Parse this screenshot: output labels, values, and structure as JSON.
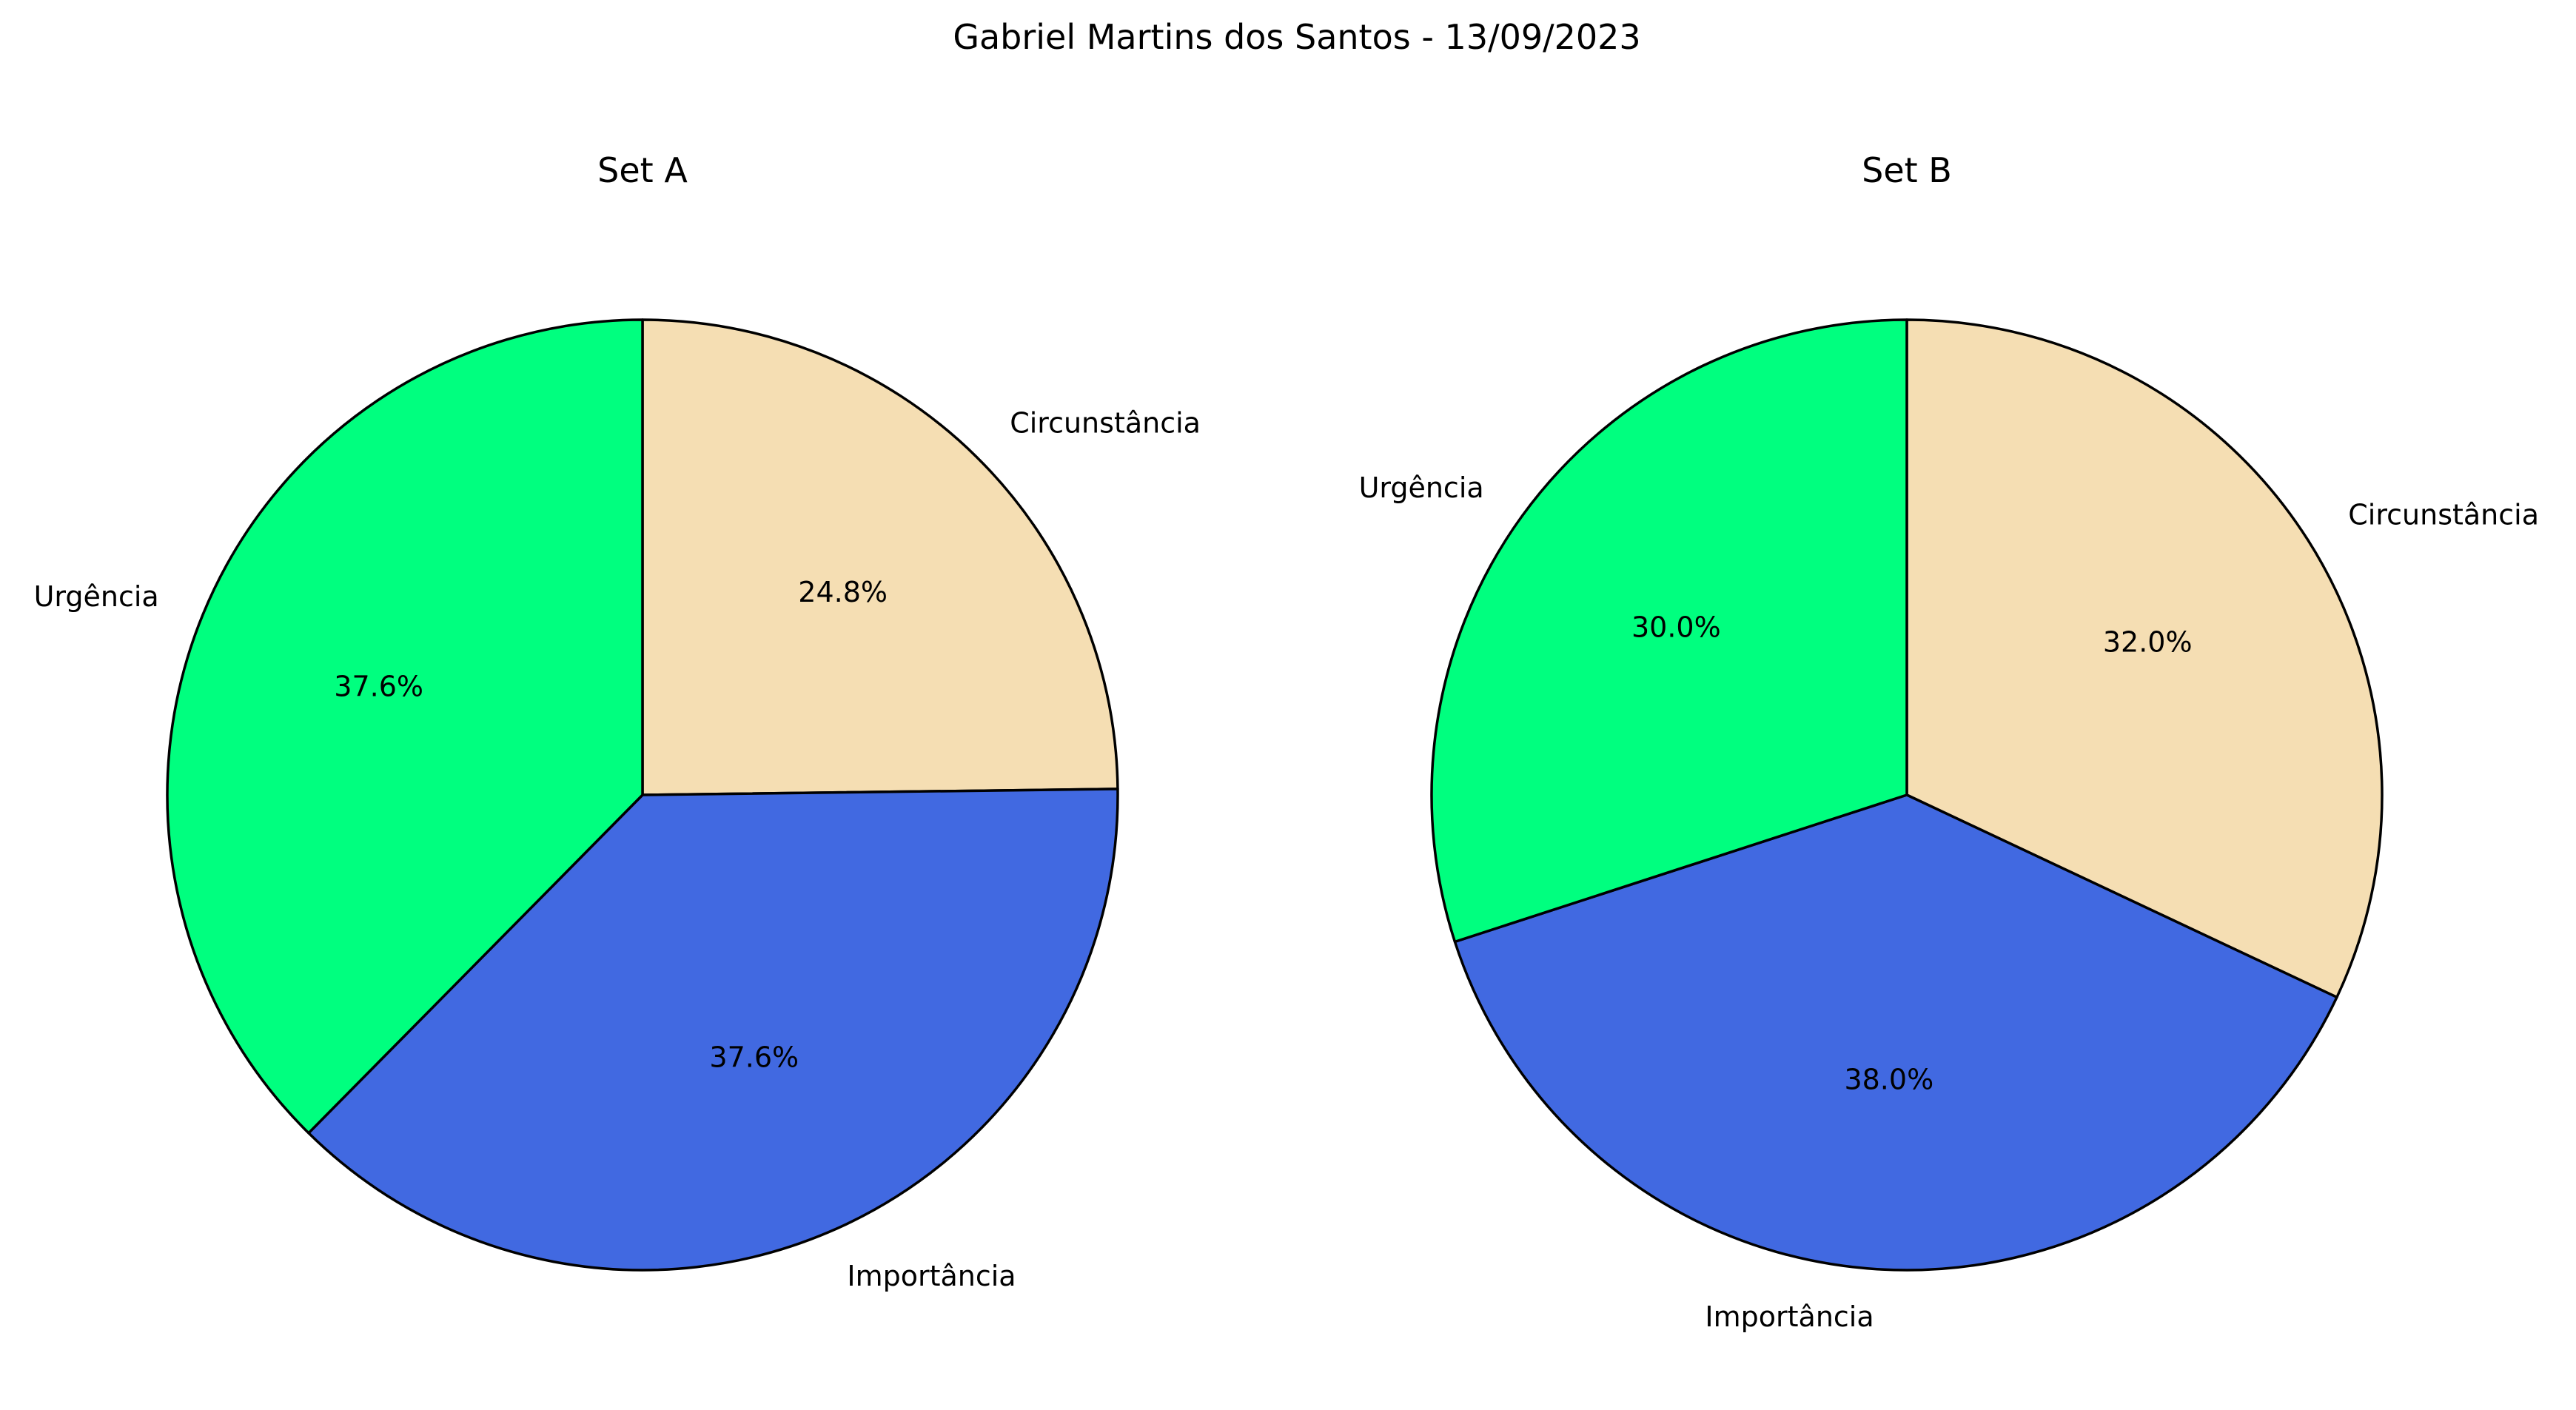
{
  "suptitle": "Gabriel Martins dos Santos - 13/09/2023",
  "chart_data": [
    {
      "type": "pie",
      "title": "Set A",
      "labels": [
        "Circunstância",
        "Importância",
        "Urgência"
      ],
      "values": [
        24.8,
        37.6,
        37.6
      ],
      "percent_labels": [
        "24.8%",
        "37.6%",
        "37.6%"
      ],
      "colors": [
        "#f5deb3",
        "#4169e1",
        "#00ff7f"
      ],
      "start_angle_deg": 90,
      "direction": "clockwise",
      "edge_color": "#000000"
    },
    {
      "type": "pie",
      "title": "Set B",
      "labels": [
        "Circunstância",
        "Importância",
        "Urgência"
      ],
      "values": [
        32.0,
        38.0,
        30.0
      ],
      "percent_labels": [
        "32.0%",
        "38.0%",
        "30.0%"
      ],
      "colors": [
        "#f5deb3",
        "#4169e1",
        "#00ff7f"
      ],
      "start_angle_deg": 90,
      "direction": "clockwise",
      "edge_color": "#000000"
    }
  ]
}
